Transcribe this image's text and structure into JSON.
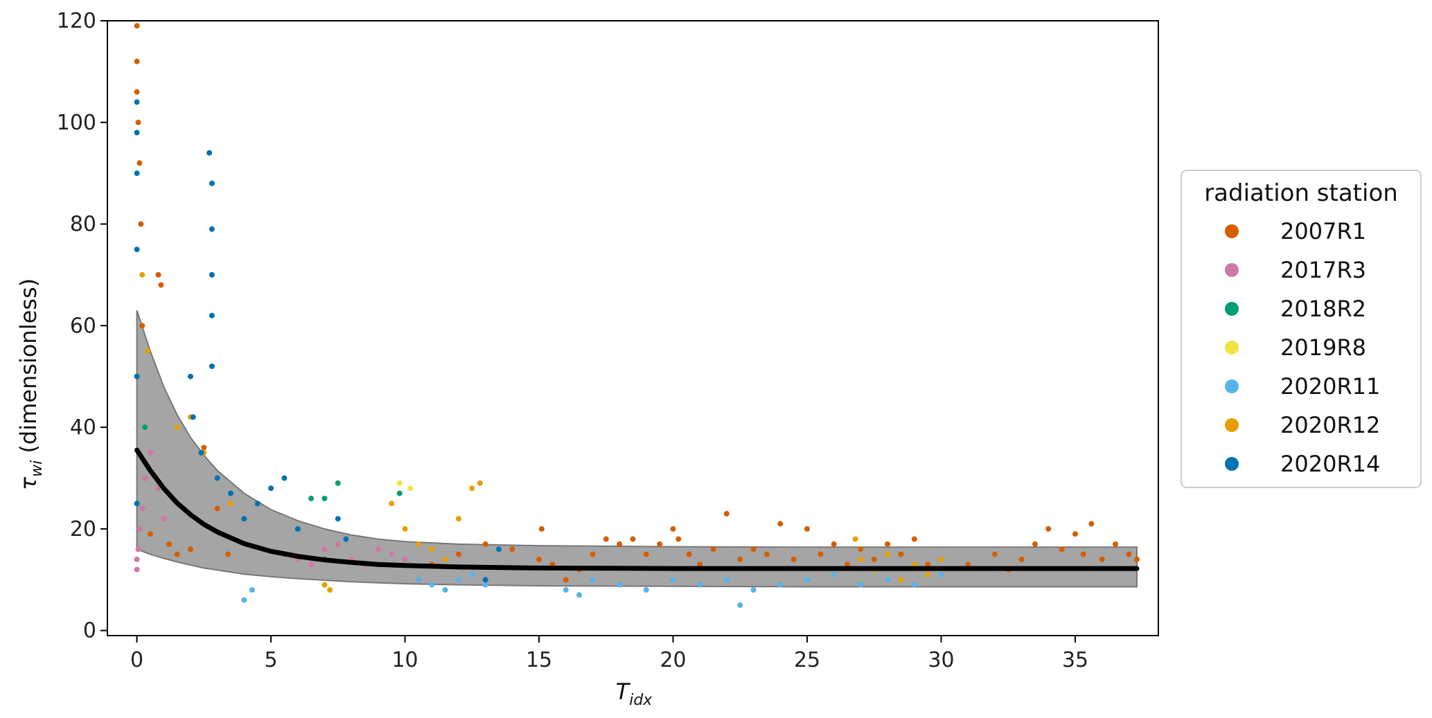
{
  "chart_data": {
    "type": "scatter",
    "title": "",
    "xlabel": "T",
    "xlabel_sub": "idx",
    "ylabel_symbol": "τ",
    "ylabel_sub": "wi",
    "ylabel_rest": " (dimensionless)",
    "xlim": [
      -1.1,
      38.1
    ],
    "ylim": [
      -1,
      120
    ],
    "xticks": [
      0,
      5,
      10,
      15,
      20,
      25,
      30,
      35
    ],
    "yticks": [
      0,
      20,
      40,
      60,
      80,
      100,
      120
    ],
    "grid": false,
    "legend": {
      "title": "radiation station",
      "placement": "outside-right"
    },
    "fit_curve": {
      "color": "#000000",
      "x": [
        0,
        0.5,
        1,
        1.5,
        2,
        2.5,
        3,
        4,
        5,
        6,
        7,
        8,
        9,
        10,
        12,
        15,
        20,
        25,
        30,
        37.3
      ],
      "y": [
        35.5,
        31.5,
        28.0,
        25.1,
        22.8,
        20.9,
        19.4,
        17.1,
        15.6,
        14.6,
        13.9,
        13.4,
        13.0,
        12.8,
        12.5,
        12.3,
        12.2,
        12.2,
        12.2,
        12.2
      ]
    },
    "band": {
      "color": "#a0a0a0",
      "x": [
        0,
        0.5,
        1,
        1.5,
        2,
        2.5,
        3,
        4,
        5,
        6,
        7,
        8,
        9,
        10,
        12,
        15,
        20,
        25,
        30,
        37.3
      ],
      "upper": [
        63.0,
        55.0,
        48.0,
        42.5,
        38.0,
        34.5,
        31.5,
        27.0,
        23.8,
        21.6,
        20.0,
        18.8,
        18.0,
        17.5,
        17.0,
        16.7,
        16.5,
        16.4,
        16.4,
        16.4
      ],
      "lower": [
        16.0,
        15.0,
        14.2,
        13.5,
        12.9,
        12.3,
        11.9,
        11.1,
        10.6,
        10.2,
        9.9,
        9.6,
        9.4,
        9.2,
        9.0,
        8.8,
        8.7,
        8.6,
        8.6,
        8.6
      ]
    },
    "series": [
      {
        "name": "2007R1",
        "color": "#d55e00",
        "x": [
          0,
          0,
          0,
          0.05,
          0.1,
          0.15,
          0.2,
          0.3,
          0.5,
          0.8,
          0.9,
          1.2,
          1.5,
          2.0,
          2.5,
          3.0,
          3.4,
          11.0,
          12.0,
          13.0,
          14.0,
          15.0,
          15.1,
          15.5,
          16.0,
          16.5,
          17.0,
          17.5,
          18.0,
          18.5,
          19.0,
          19.5,
          20.0,
          20.2,
          20.6,
          21.0,
          21.5,
          22.0,
          22.5,
          23.0,
          23.5,
          24.0,
          24.5,
          25.0,
          25.5,
          26.0,
          26.5,
          27.0,
          27.5,
          28.0,
          28.5,
          29.0,
          29.5,
          30.0,
          31.0,
          32.0,
          32.5,
          33.0,
          33.5,
          34.0,
          34.5,
          35.0,
          35.3,
          35.6,
          36.0,
          36.5,
          37.0,
          37.3
        ],
        "y": [
          119,
          112,
          106,
          100,
          92,
          80,
          60,
          30,
          19,
          70,
          68,
          17,
          15,
          16,
          36,
          24,
          15,
          13,
          15,
          17,
          16,
          14,
          20,
          13,
          10,
          12,
          15,
          18,
          17,
          18,
          15,
          17,
          20,
          18,
          15,
          13,
          16,
          23,
          14,
          16,
          15,
          21,
          14,
          20,
          15,
          17,
          13,
          16,
          14,
          17,
          15,
          18,
          13,
          14,
          13,
          15,
          12,
          14,
          17,
          20,
          16,
          19,
          15,
          21,
          14,
          17,
          15,
          14
        ]
      },
      {
        "name": "2017R3",
        "color": "#cc79a7",
        "x": [
          0,
          0,
          0.05,
          0.1,
          0.2,
          0.3,
          0.5,
          0.8,
          1.0,
          5.5,
          6.0,
          6.5,
          7.0,
          7.5,
          8.0,
          8.5,
          9.0,
          9.5,
          10.0
        ],
        "y": [
          12,
          14,
          16,
          20,
          24,
          30,
          35,
          28,
          22,
          15,
          14,
          13,
          16,
          17,
          14,
          13,
          16,
          15,
          14
        ]
      },
      {
        "name": "2018R2",
        "color": "#009e73",
        "x": [
          0.3,
          6.5,
          7.0,
          7.5,
          9.8
        ],
        "y": [
          40,
          26,
          26,
          29,
          27
        ]
      },
      {
        "name": "2019R8",
        "color": "#f0e442",
        "x": [
          9.8,
          10.2
        ],
        "y": [
          29,
          28
        ]
      },
      {
        "name": "2020R11",
        "color": "#56b4e9",
        "x": [
          4.0,
          4.3,
          10.5,
          11.0,
          11.5,
          12.0,
          12.5,
          13.0,
          16.0,
          16.5,
          17.0,
          18.0,
          19.0,
          20.0,
          21.0,
          22.0,
          22.5,
          23.0,
          24.0,
          25.0,
          26.0,
          27.0,
          28.0,
          29.0,
          30.0
        ],
        "y": [
          6,
          8,
          10,
          9,
          8,
          10,
          11,
          9,
          8,
          7,
          10,
          9,
          8,
          10,
          9,
          10,
          5,
          8,
          9,
          10,
          11,
          9,
          10,
          9,
          11
        ]
      },
      {
        "name": "2020R12",
        "color": "#e69f00",
        "x": [
          0.2,
          0.4,
          1.5,
          2.0,
          2.5,
          3.0,
          3.5,
          7.0,
          7.2,
          9.5,
          10.0,
          10.5,
          11.0,
          11.5,
          12.0,
          12.5,
          12.8,
          26.8,
          27.0,
          27.5,
          28.0,
          28.5,
          29.0,
          29.5,
          30.0
        ],
        "y": [
          70,
          55,
          40,
          42,
          35,
          30,
          25,
          9,
          8,
          25,
          20,
          17,
          16,
          14,
          22,
          28,
          29,
          18,
          14,
          12,
          15,
          10,
          13,
          11,
          14
        ]
      },
      {
        "name": "2020R14",
        "color": "#0072b2",
        "x": [
          0,
          0,
          0,
          0,
          0,
          0,
          2.0,
          2.1,
          2.4,
          2.7,
          2.8,
          2.8,
          2.8,
          2.8,
          2.8,
          3.0,
          3.5,
          4.0,
          4.5,
          5.0,
          5.5,
          6.0,
          7.0,
          7.5,
          7.8,
          13.0,
          13.5
        ],
        "y": [
          104,
          98,
          90,
          75,
          50,
          25,
          50,
          42,
          35,
          94,
          88,
          79,
          70,
          62,
          52,
          30,
          27,
          22,
          25,
          28,
          30,
          20,
          14,
          22,
          18,
          10,
          16
        ]
      }
    ]
  }
}
